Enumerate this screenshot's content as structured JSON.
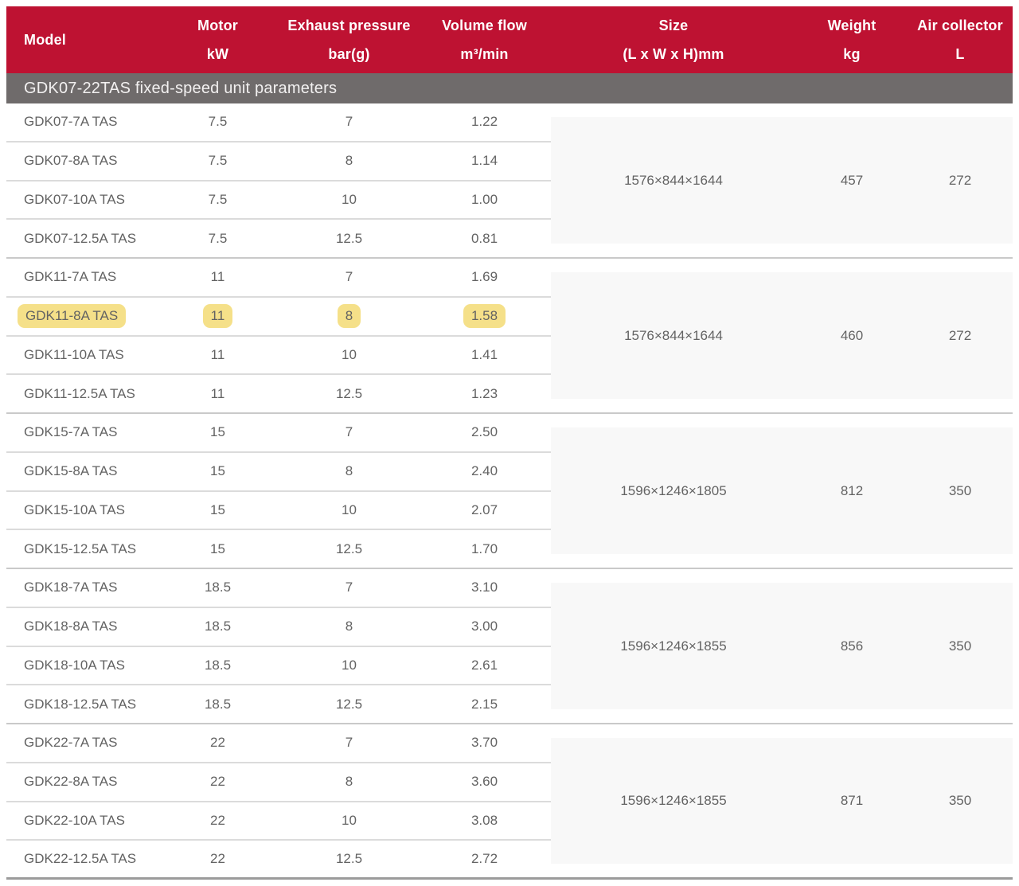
{
  "colors": {
    "header_red": "#BE1232",
    "section_gray": "#6F6B6B",
    "highlight_yellow": "#F5E089",
    "body_text": "#636363"
  },
  "table": {
    "section_title": "GDK07-22TAS fixed-speed unit parameters",
    "columns": [
      {
        "title": "Model",
        "unit": ""
      },
      {
        "title": "Motor",
        "unit": "kW"
      },
      {
        "title": "Exhaust pressure",
        "unit": "bar(g)"
      },
      {
        "title": "Volume flow",
        "unit": "m³/min"
      },
      {
        "title": "Size",
        "unit": "(L x W x H)mm"
      },
      {
        "title": "Weight",
        "unit": "kg"
      },
      {
        "title": "Air collector",
        "unit": "L"
      }
    ],
    "groups": [
      {
        "size": "1576×844×1644",
        "weight": "457",
        "air_collector": "272",
        "rows": [
          {
            "model": "GDK07-7A TAS",
            "motor_kw": "7.5",
            "pressure_bar": "7",
            "flow_m3min": "1.22",
            "highlighted": false
          },
          {
            "model": "GDK07-8A TAS",
            "motor_kw": "7.5",
            "pressure_bar": "8",
            "flow_m3min": "1.14",
            "highlighted": false
          },
          {
            "model": "GDK07-10A TAS",
            "motor_kw": "7.5",
            "pressure_bar": "10",
            "flow_m3min": "1.00",
            "highlighted": false
          },
          {
            "model": "GDK07-12.5A TAS",
            "motor_kw": "7.5",
            "pressure_bar": "12.5",
            "flow_m3min": "0.81",
            "highlighted": false
          }
        ]
      },
      {
        "size": "1576×844×1644",
        "weight": "460",
        "air_collector": "272",
        "rows": [
          {
            "model": "GDK11-7A TAS",
            "motor_kw": "11",
            "pressure_bar": "7",
            "flow_m3min": "1.69",
            "highlighted": false
          },
          {
            "model": "GDK11-8A TAS",
            "motor_kw": "11",
            "pressure_bar": "8",
            "flow_m3min": "1.58",
            "highlighted": true
          },
          {
            "model": "GDK11-10A TAS",
            "motor_kw": "11",
            "pressure_bar": "10",
            "flow_m3min": "1.41",
            "highlighted": false
          },
          {
            "model": "GDK11-12.5A TAS",
            "motor_kw": "11",
            "pressure_bar": "12.5",
            "flow_m3min": "1.23",
            "highlighted": false
          }
        ]
      },
      {
        "size": "1596×1246×1805",
        "weight": "812",
        "air_collector": "350",
        "rows": [
          {
            "model": "GDK15-7A TAS",
            "motor_kw": "15",
            "pressure_bar": "7",
            "flow_m3min": "2.50",
            "highlighted": false
          },
          {
            "model": "GDK15-8A TAS",
            "motor_kw": "15",
            "pressure_bar": "8",
            "flow_m3min": "2.40",
            "highlighted": false
          },
          {
            "model": "GDK15-10A TAS",
            "motor_kw": "15",
            "pressure_bar": "10",
            "flow_m3min": "2.07",
            "highlighted": false
          },
          {
            "model": "GDK15-12.5A TAS",
            "motor_kw": "15",
            "pressure_bar": "12.5",
            "flow_m3min": "1.70",
            "highlighted": false
          }
        ]
      },
      {
        "size": "1596×1246×1855",
        "weight": "856",
        "air_collector": "350",
        "rows": [
          {
            "model": "GDK18-7A TAS",
            "motor_kw": "18.5",
            "pressure_bar": "7",
            "flow_m3min": "3.10",
            "highlighted": false
          },
          {
            "model": "GDK18-8A TAS",
            "motor_kw": "18.5",
            "pressure_bar": "8",
            "flow_m3min": "3.00",
            "highlighted": false
          },
          {
            "model": "GDK18-10A TAS",
            "motor_kw": "18.5",
            "pressure_bar": "10",
            "flow_m3min": "2.61",
            "highlighted": false
          },
          {
            "model": "GDK18-12.5A TAS",
            "motor_kw": "18.5",
            "pressure_bar": "12.5",
            "flow_m3min": "2.15",
            "highlighted": false
          }
        ]
      },
      {
        "size": "1596×1246×1855",
        "weight": "871",
        "air_collector": "350",
        "rows": [
          {
            "model": "GDK22-7A TAS",
            "motor_kw": "22",
            "pressure_bar": "7",
            "flow_m3min": "3.70",
            "highlighted": false
          },
          {
            "model": "GDK22-8A TAS",
            "motor_kw": "22",
            "pressure_bar": "8",
            "flow_m3min": "3.60",
            "highlighted": false
          },
          {
            "model": "GDK22-10A TAS",
            "motor_kw": "22",
            "pressure_bar": "10",
            "flow_m3min": "3.08",
            "highlighted": false
          },
          {
            "model": "GDK22-12.5A TAS",
            "motor_kw": "22",
            "pressure_bar": "12.5",
            "flow_m3min": "2.72",
            "highlighted": false
          }
        ]
      }
    ]
  }
}
